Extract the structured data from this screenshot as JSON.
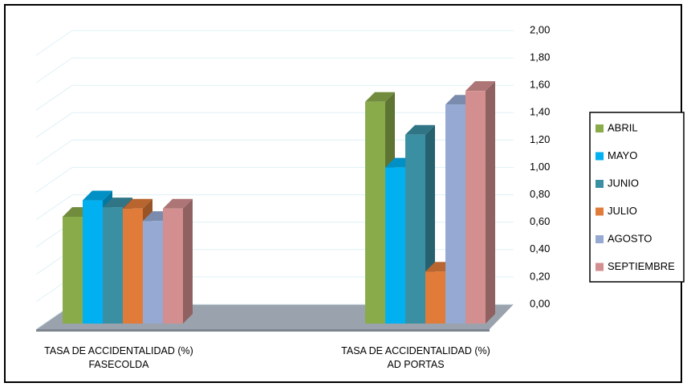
{
  "chart_data": {
    "type": "bar3d",
    "categories": [
      "TASA DE ACCIDENTALIDAD (%)\nFASECOLDA",
      "TASA DE ACCIDENTALIDAD (%)\nAD PORTAS"
    ],
    "series": [
      {
        "name": "ABRIL",
        "color": "#8aab4a",
        "values": [
          0.78,
          1.62
        ]
      },
      {
        "name": "MAYO",
        "color": "#00b0f0",
        "values": [
          0.9,
          1.14
        ]
      },
      {
        "name": "JUNIO",
        "color": "#3a8fa3",
        "values": [
          0.85,
          1.38
        ]
      },
      {
        "name": "JULIO",
        "color": "#e07b39",
        "values": [
          0.84,
          0.38
        ]
      },
      {
        "name": "AGOSTO",
        "color": "#95a9d3",
        "values": [
          0.75,
          1.6
        ]
      },
      {
        "name": "SEPTIEMBRE",
        "color": "#d38f8f",
        "values": [
          0.84,
          1.7
        ]
      }
    ],
    "ylim": [
      0,
      2
    ],
    "yticks": [
      {
        "value": 0,
        "label": "0,00"
      },
      {
        "value": 0.2,
        "label": "0,20"
      },
      {
        "value": 0.4,
        "label": "0,40"
      },
      {
        "value": 0.6,
        "label": "0,60"
      },
      {
        "value": 0.8,
        "label": "0,80"
      },
      {
        "value": 1,
        "label": "1,00"
      },
      {
        "value": 1.2,
        "label": "1,20"
      },
      {
        "value": 1.4,
        "label": "1,40"
      },
      {
        "value": 1.6,
        "label": "1,60"
      },
      {
        "value": 1.8,
        "label": "1,80"
      },
      {
        "value": 2,
        "label": "2,00"
      }
    ],
    "grid": true,
    "legend": "right"
  }
}
